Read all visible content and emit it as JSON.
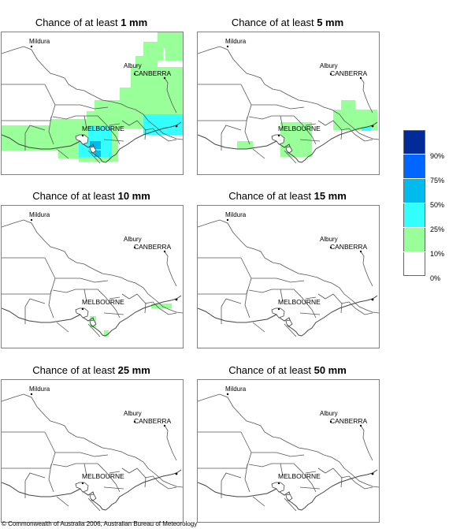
{
  "panels": [
    {
      "prefix": "Chance of at least ",
      "amount": "1 mm"
    },
    {
      "prefix": "Chance of at least ",
      "amount": "5 mm"
    },
    {
      "prefix": "Chance of at least ",
      "amount": "10 mm"
    },
    {
      "prefix": "Chance of at least ",
      "amount": "15 mm"
    },
    {
      "prefix": "Chance of at least ",
      "amount": "25 mm"
    },
    {
      "prefix": "Chance of at least ",
      "amount": "50 mm"
    }
  ],
  "places": {
    "mildura": "Mildura",
    "canberra": "CANBERRA",
    "albury": "Albury",
    "melbourne": "MELBOURNE"
  },
  "legend": {
    "ticks": [
      "90%",
      "75%",
      "50%",
      "25%",
      "10%",
      "0%"
    ],
    "colors": [
      "#002b99",
      "#0066ff",
      "#00bbee",
      "#33ffff",
      "#99ff99",
      "#ffffff"
    ]
  },
  "credit": "© Commonwealth of Australia 2006, Australian Bureau of Meteorology"
}
